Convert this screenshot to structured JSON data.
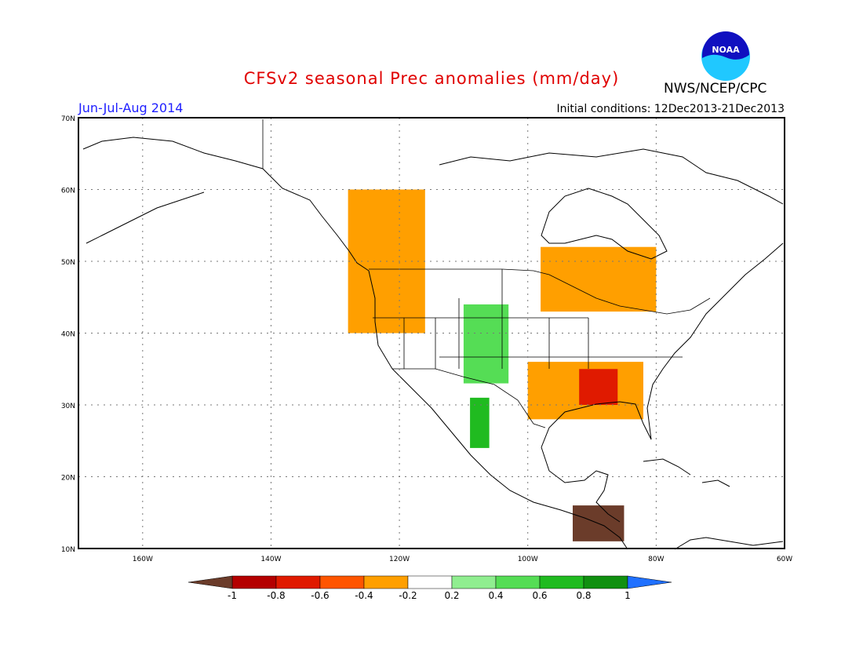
{
  "header": {
    "title": "CFSv2 seasonal Prec anomalies (mm/day)",
    "period": "Jun-Jul-Aug 2014",
    "initial_conditions": "Initial conditions: 12Dec2013-21Dec2013",
    "agency": "NWS/NCEP/CPC",
    "logo_text": "NOAA"
  },
  "map": {
    "lat_range": [
      10,
      70
    ],
    "lon_range": [
      -170,
      -60
    ],
    "lat_labels": [
      "70N",
      "60N",
      "50N",
      "40N",
      "30N",
      "20N",
      "10N"
    ],
    "lon_labels": [
      "160W",
      "140W",
      "120W",
      "100W",
      "80W",
      "60W"
    ]
  },
  "legend": {
    "labels": [
      "-1",
      "-0.8",
      "-0.6",
      "-0.4",
      "-0.2",
      "0.2",
      "0.4",
      "0.6",
      "0.8",
      "1"
    ],
    "colors": [
      "#6b3c2a",
      "#b40000",
      "#e01a00",
      "#ff5500",
      "#ff9f00",
      "#ffffff",
      "#90ee90",
      "#55dd55",
      "#20bb20",
      "#109010",
      "#2070ff"
    ]
  },
  "anomaly_regions": [
    {
      "label": "Pacific Northwest dry",
      "color": "#ff9f00",
      "lat": [
        40,
        60
      ],
      "lon": [
        -128,
        -116
      ]
    },
    {
      "label": "Great Lakes dry",
      "color": "#ff9f00",
      "lat": [
        43,
        52
      ],
      "lon": [
        -98,
        -80
      ]
    },
    {
      "label": "Southeast dry",
      "color": "#ff9f00",
      "lat": [
        28,
        36
      ],
      "lon": [
        -100,
        -82
      ]
    },
    {
      "label": "Southeast strong dry",
      "color": "#e01a00",
      "lat": [
        30,
        35
      ],
      "lon": [
        -92,
        -86
      ]
    },
    {
      "label": "Southwest wet",
      "color": "#55dd55",
      "lat": [
        33,
        44
      ],
      "lon": [
        -110,
        -103
      ]
    },
    {
      "label": "Mexico monsoon wet",
      "color": "#20bb20",
      "lat": [
        24,
        31
      ],
      "lon": [
        -109,
        -106
      ]
    },
    {
      "label": "Central America very dry",
      "color": "#6b3c2a",
      "lat": [
        11,
        16
      ],
      "lon": [
        -93,
        -85
      ]
    }
  ]
}
